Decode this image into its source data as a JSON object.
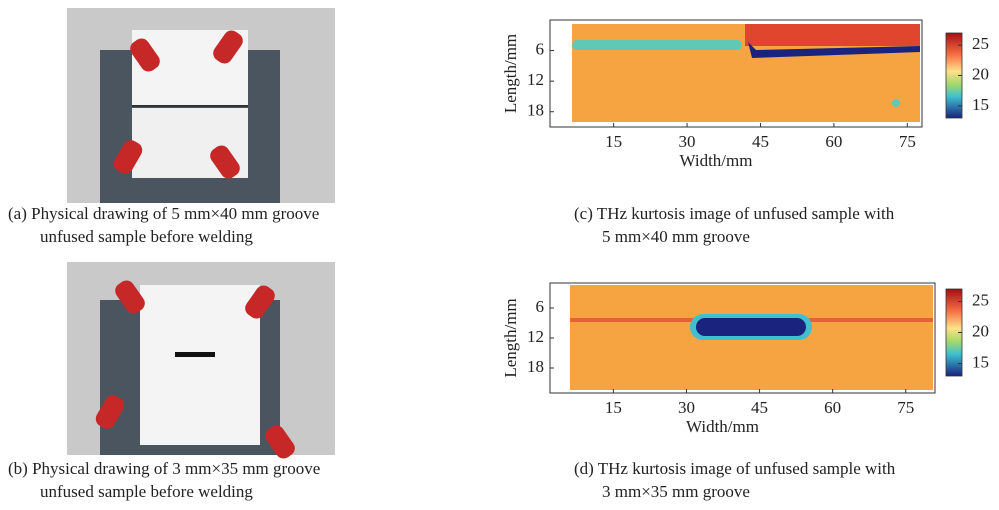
{
  "photos": [
    {
      "caption": [
        "(a) Physical drawing of 5 mm×40 mm groove",
        "unfused sample before welding"
      ]
    },
    {
      "caption": [
        "(b) Physical drawing of 3 mm×35 mm groove",
        "unfused sample before welding"
      ]
    }
  ],
  "heatmaps": [
    {
      "xlabel": "Width/mm",
      "ylabel": "Length/mm",
      "xlim": [
        2,
        78
      ],
      "xticks": [
        15,
        30,
        45,
        60,
        75
      ],
      "ylim": [
        0,
        21
      ],
      "yticks": [
        6,
        12,
        18
      ],
      "clim": [
        13,
        27
      ],
      "cticks": [
        25,
        20,
        15
      ],
      "caption": [
        "(c) THz kurtosis image of unfused sample with",
        "5 mm×40 mm groove"
      ]
    },
    {
      "xlabel": "Width/mm",
      "ylabel": "Length/mm",
      "xlim": [
        2,
        81
      ],
      "xticks": [
        15,
        30,
        45,
        60,
        75
      ],
      "ylim": [
        1,
        23
      ],
      "yticks": [
        6,
        12,
        18
      ],
      "clim": [
        13,
        27
      ],
      "cticks": [
        25,
        20,
        15
      ],
      "caption": [
        "(d) THz kurtosis image of unfused sample with",
        "3 mm×35 mm groove"
      ]
    }
  ]
}
